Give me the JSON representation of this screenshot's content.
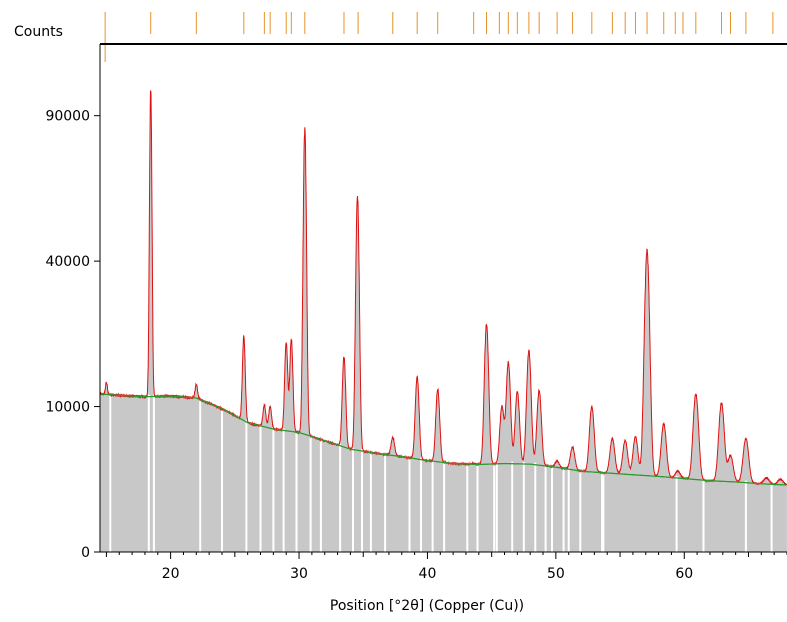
{
  "chart_data": {
    "type": "line",
    "title": "",
    "xlabel": "Position [°2θ] (Copper (Cu))",
    "ylabel": "Counts",
    "xlim": [
      14.5,
      68
    ],
    "y_scale": "sqrt",
    "ylim": [
      0,
      122000
    ],
    "x_ticks": [
      20,
      30,
      40,
      50,
      60
    ],
    "y_ticks": [
      0,
      10000,
      40000,
      90000
    ],
    "colors": {
      "measured": "#dd1111",
      "background": "#2e9a2e",
      "fill": "#c8c8c8",
      "reference": "#e8922a",
      "axis": "#000000"
    },
    "background_points": [
      [
        14.5,
        11800
      ],
      [
        16,
        11600
      ],
      [
        18,
        11400
      ],
      [
        20,
        11500
      ],
      [
        22,
        11200
      ],
      [
        24,
        9700
      ],
      [
        26,
        7900
      ],
      [
        28,
        7150
      ],
      [
        30,
        6750
      ],
      [
        32,
        5850
      ],
      [
        34,
        5000
      ],
      [
        36,
        4600
      ],
      [
        38,
        4300
      ],
      [
        40,
        3950
      ],
      [
        42,
        3700
      ],
      [
        44,
        3620
      ],
      [
        46,
        3700
      ],
      [
        48,
        3650
      ],
      [
        50,
        3400
      ],
      [
        52,
        3080
      ],
      [
        54,
        2950
      ],
      [
        56,
        2820
      ],
      [
        58,
        2700
      ],
      [
        60,
        2550
      ],
      [
        62,
        2400
      ],
      [
        64,
        2320
      ],
      [
        66,
        2200
      ],
      [
        68,
        2120
      ]
    ],
    "peaks": [
      {
        "pos": 15.0,
        "height": 13600
      },
      {
        "pos": 18.45,
        "height": 102000
      },
      {
        "pos": 22.0,
        "height": 13300
      },
      {
        "pos": 25.7,
        "height": 22000
      },
      {
        "pos": 27.3,
        "height": 10200
      },
      {
        "pos": 27.75,
        "height": 10000
      },
      {
        "pos": 29.0,
        "height": 20800
      },
      {
        "pos": 29.4,
        "height": 21400
      },
      {
        "pos": 30.45,
        "height": 85000
      },
      {
        "pos": 33.5,
        "height": 18000
      },
      {
        "pos": 34.55,
        "height": 60000
      },
      {
        "pos": 37.3,
        "height": 6200
      },
      {
        "pos": 39.2,
        "height": 14500
      },
      {
        "pos": 40.8,
        "height": 12500
      },
      {
        "pos": 43.6,
        "height": 3700
      },
      {
        "pos": 44.6,
        "height": 24500
      },
      {
        "pos": 45.8,
        "height": 10000
      },
      {
        "pos": 46.3,
        "height": 17000
      },
      {
        "pos": 47.0,
        "height": 12200
      },
      {
        "pos": 47.9,
        "height": 19200
      },
      {
        "pos": 48.7,
        "height": 12300
      },
      {
        "pos": 50.1,
        "height": 3900
      },
      {
        "pos": 51.3,
        "height": 5200
      },
      {
        "pos": 52.8,
        "height": 10000
      },
      {
        "pos": 54.4,
        "height": 6100
      },
      {
        "pos": 55.4,
        "height": 5900
      },
      {
        "pos": 56.2,
        "height": 6300
      },
      {
        "pos": 57.1,
        "height": 43000
      },
      {
        "pos": 58.4,
        "height": 7800
      },
      {
        "pos": 59.5,
        "height": 3100
      },
      {
        "pos": 60.9,
        "height": 11800
      },
      {
        "pos": 62.9,
        "height": 10500
      },
      {
        "pos": 63.6,
        "height": 4400
      },
      {
        "pos": 64.8,
        "height": 6100
      },
      {
        "pos": 66.4,
        "height": 2600
      },
      {
        "pos": 67.5,
        "height": 2500
      }
    ],
    "reference_lines": [
      14.9,
      18.45,
      22.0,
      25.7,
      27.3,
      27.75,
      29.0,
      29.4,
      30.45,
      33.5,
      34.6,
      37.3,
      39.2,
      40.8,
      43.6,
      44.6,
      45.6,
      46.3,
      47.0,
      47.9,
      48.7,
      50.1,
      51.3,
      52.8,
      54.4,
      55.4,
      56.2,
      57.1,
      58.4,
      59.3,
      59.9,
      60.9,
      62.9,
      63.6,
      64.8,
      66.9
    ],
    "fill_gaps": [
      15.3,
      18.3,
      18.7,
      22.3,
      24.0,
      25.9,
      27.0,
      28.0,
      28.8,
      29.8,
      30.9,
      31.7,
      33.2,
      34.2,
      34.9,
      35.6,
      36.7,
      38.6,
      39.5,
      40.4,
      41.3,
      43.1,
      43.9,
      45.2,
      45.4,
      46.6,
      47.5,
      48.4,
      49.2,
      49.7,
      50.6,
      51.0,
      51.9,
      53.6,
      53.7,
      59.4,
      61.5,
      64.8,
      66.8
    ]
  }
}
